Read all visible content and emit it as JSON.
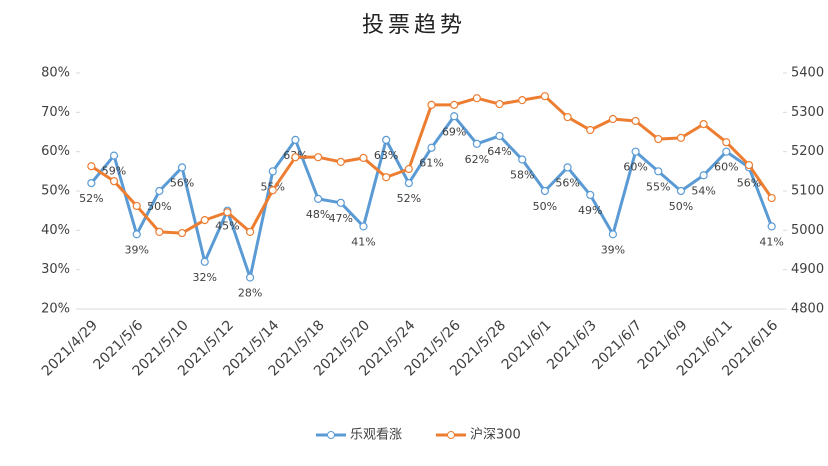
{
  "chart_data": {
    "type": "line",
    "title": "投票趋势",
    "categories": [
      "2021/4/29",
      null,
      "2021/5/6",
      null,
      "2021/5/10",
      null,
      "2021/5/12",
      null,
      "2021/5/14",
      null,
      "2021/5/18",
      null,
      "2021/5/20",
      null,
      "2021/5/24",
      null,
      "2021/5/26",
      null,
      "2021/5/28",
      null,
      "2021/6/1",
      null,
      "2021/6/3",
      null,
      "2021/6/7",
      null,
      "2021/6/9",
      null,
      "2021/6/11",
      null,
      "2021/6/16"
    ],
    "series": [
      {
        "name": "乐观看涨",
        "color": "#5b9bd5",
        "values": [
          52,
          59,
          39,
          50,
          56,
          32,
          45,
          28,
          55,
          63,
          48,
          47,
          41,
          63,
          52,
          61,
          69,
          62,
          64,
          58,
          50,
          56,
          49,
          39,
          60,
          55,
          50,
          54,
          60,
          56,
          41
        ],
        "value_labels": [
          "52%",
          "59%",
          "39%",
          "50%",
          "56%",
          "32%",
          "45%",
          "28%",
          "55%",
          "63%",
          "48%",
          "47%",
          "41%",
          "63%",
          "52%",
          "61%",
          "69%",
          "62%",
          "64%",
          "58%",
          "50%",
          "56%",
          "49%",
          "39%",
          "60%",
          "55%",
          "50%",
          "54%",
          "60%",
          "56%",
          "41%"
        ]
      },
      {
        "name": "沪深300",
        "color": "#ed7d31",
        "axis": "y2",
        "values": [
          5163,
          5125,
          5062,
          4996,
          4993,
          5026,
          5046,
          4996,
          5102,
          5186,
          5186,
          5174,
          5184,
          5135,
          5156,
          5319,
          5319,
          5336,
          5321,
          5331,
          5341,
          5288,
          5255,
          5283,
          5278,
          5232,
          5235,
          5270,
          5224,
          5166,
          5082
        ]
      }
    ],
    "ylim": [
      20,
      80
    ],
    "yticks": [
      {
        "value": 20,
        "label": "20%"
      },
      {
        "value": 30,
        "label": "30%"
      },
      {
        "value": 40,
        "label": "40%"
      },
      {
        "value": 50,
        "label": "50%"
      },
      {
        "value": 60,
        "label": "60%"
      },
      {
        "value": 70,
        "label": "70%"
      },
      {
        "value": 80,
        "label": "80%"
      }
    ],
    "y2lim": [
      4800,
      5400
    ],
    "y2ticks": [
      4800,
      4900,
      5000,
      5100,
      5200,
      5300,
      5400
    ],
    "legend": "bottom"
  }
}
